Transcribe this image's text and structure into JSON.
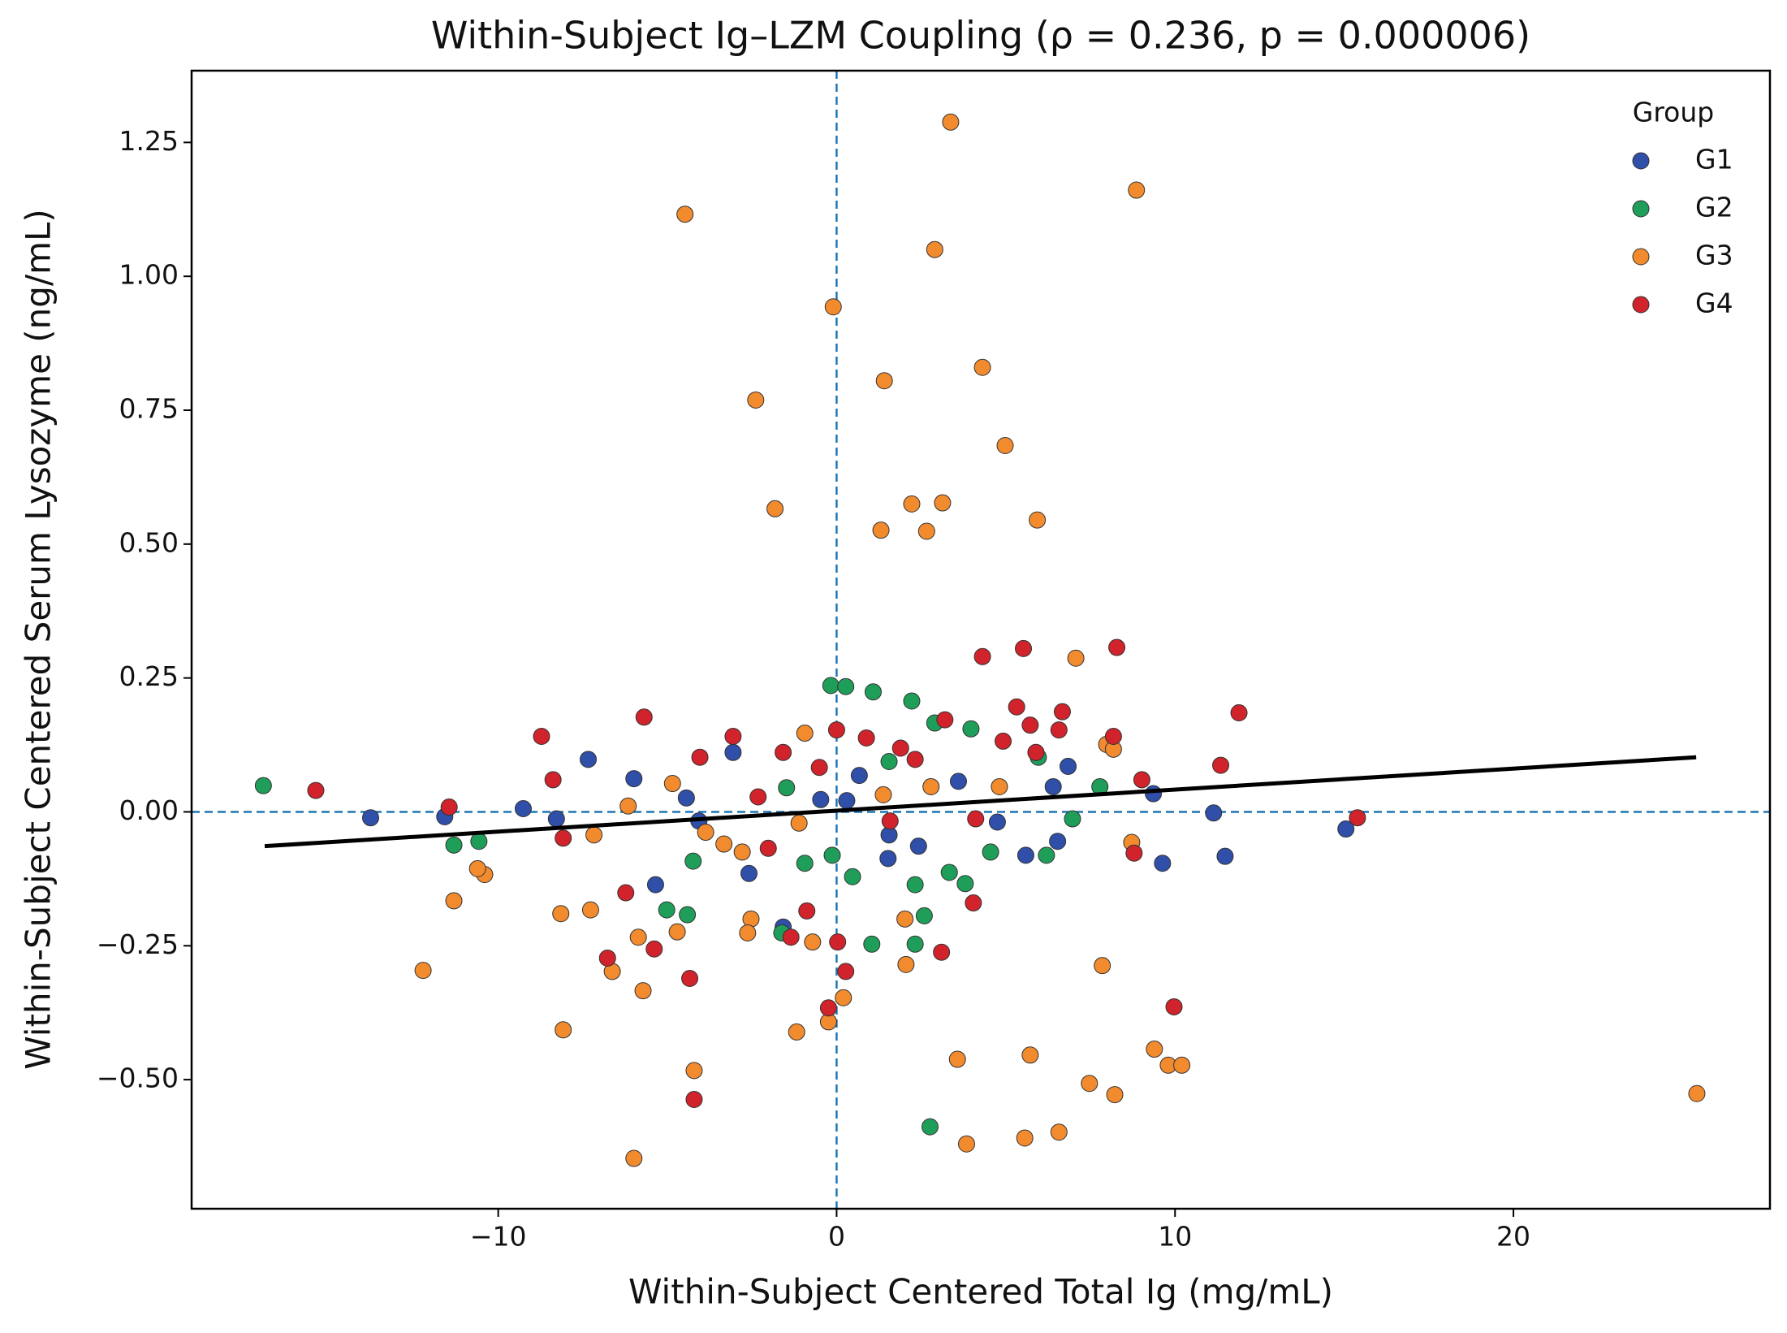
{
  "chart_data": {
    "type": "scatter",
    "title": "Within-Subject Ig–LZM Coupling (ρ = 0.236, p = 0.000006)",
    "x_label": "Within-Subject Centered Total Ig (mg/mL)",
    "y_label": "Within-Subject Centered Serum Lysozyme (ng/mL)",
    "xlim": [
      -19.06,
      27.58
    ],
    "ylim": [
      -0.741,
      1.384
    ],
    "xticks": [
      {
        "value": -10,
        "label": "−10"
      },
      0,
      10,
      20
    ],
    "yticks": [
      {
        "value": -0.5,
        "label": "−0.50"
      },
      {
        "value": -0.25,
        "label": "−0.25"
      },
      {
        "value": 0,
        "label": "0.00"
      },
      {
        "value": 0.25,
        "label": "0.25"
      },
      {
        "value": 0.5,
        "label": "0.50"
      },
      {
        "value": 0.75,
        "label": "0.75"
      },
      {
        "value": 1.0,
        "label": "1.00"
      },
      {
        "value": 1.25,
        "label": "1.25"
      }
    ],
    "grid": false,
    "legend_title": "Group",
    "legend_position": "upper right",
    "reference_lines": {
      "x": 0,
      "y": 0,
      "color": "#1f77b4"
    },
    "trend_line": {
      "x": [
        -16.9,
        25.4
      ],
      "y": [
        -0.064,
        0.102
      ],
      "color": "#000000"
    },
    "series": [
      {
        "name": "G1",
        "color": "#2f4fa8",
        "x": [
          -13.77,
          -11.58,
          -9.26,
          -8.28,
          -7.34,
          -5.99,
          -5.35,
          -4.44,
          -3.06,
          -2.59,
          -1.58,
          1.52,
          2.42,
          3.6,
          4.75,
          5.59,
          6.53,
          6.4,
          6.84,
          9.36,
          9.63,
          11.14,
          11.48,
          15.05,
          0.67,
          0.3,
          1.55,
          -0.47,
          -4.07
        ],
        "y": [
          -0.011,
          -0.009,
          0.006,
          -0.013,
          0.098,
          0.062,
          -0.136,
          0.026,
          0.111,
          -0.115,
          -0.215,
          -0.087,
          -0.064,
          0.057,
          -0.019,
          -0.081,
          -0.055,
          0.047,
          0.085,
          0.034,
          -0.096,
          -0.002,
          -0.083,
          -0.032,
          0.068,
          0.021,
          -0.043,
          0.023,
          -0.017
        ]
      },
      {
        "name": "G2",
        "color": "#1f9e5a",
        "x": [
          -16.94,
          -11.31,
          -10.57,
          -5.02,
          -4.41,
          -4.24,
          -1.62,
          -0.17,
          0.27,
          1.08,
          2.22,
          2.9,
          3.97,
          1.04,
          2.32,
          2.32,
          2.59,
          2.76,
          3.33,
          3.8,
          4.55,
          5.96,
          6.2,
          6.97,
          7.78,
          0.47,
          -0.13,
          -0.94,
          1.55,
          -1.48
        ],
        "y": [
          0.049,
          -0.062,
          -0.055,
          -0.183,
          -0.192,
          -0.092,
          -0.226,
          0.236,
          0.234,
          0.224,
          0.207,
          0.166,
          0.155,
          -0.247,
          -0.247,
          -0.136,
          -0.194,
          -0.588,
          -0.113,
          -0.134,
          -0.075,
          0.102,
          -0.081,
          -0.013,
          0.047,
          -0.121,
          -0.081,
          -0.096,
          0.094,
          0.045
        ]
      },
      {
        "name": "G3",
        "color": "#f28a2e",
        "x": [
          3.37,
          8.86,
          -4.48,
          2.9,
          -0.1,
          1.41,
          4.31,
          -2.39,
          4.98,
          -1.82,
          2.22,
          3.13,
          1.31,
          2.66,
          5.93,
          7.07,
          7.98,
          8.18,
          8.72,
          7.85,
          9.39,
          9.8,
          10.2,
          7.47,
          8.22,
          6.57,
          5.56,
          3.84,
          3.57,
          5.72,
          25.42,
          -5.99,
          -8.08,
          -4.21,
          -1.18,
          -0.24,
          0.2,
          -12.22,
          -11.31,
          -10.4,
          -10.61,
          -8.15,
          -7.27,
          -6.63,
          -5.72,
          -5.86,
          -4.71,
          -2.53,
          -2.63,
          -0.71,
          2.05,
          2.02,
          4.81,
          -0.94,
          -7.17,
          -6.16,
          -4.85,
          -3.87,
          -3.33,
          -2.79,
          -1.11,
          1.38,
          2.79
        ],
        "y": [
          1.288,
          1.161,
          1.116,
          1.05,
          0.943,
          0.805,
          0.83,
          0.769,
          0.684,
          0.566,
          0.575,
          0.577,
          0.526,
          0.524,
          0.545,
          0.287,
          0.126,
          0.117,
          -0.057,
          -0.287,
          -0.443,
          -0.473,
          -0.473,
          -0.507,
          -0.528,
          -0.598,
          -0.609,
          -0.62,
          -0.462,
          -0.454,
          -0.526,
          -0.647,
          -0.407,
          -0.483,
          -0.411,
          -0.392,
          -0.347,
          -0.296,
          -0.166,
          -0.117,
          -0.106,
          -0.19,
          -0.183,
          -0.298,
          -0.334,
          -0.234,
          -0.224,
          -0.2,
          -0.226,
          -0.243,
          -0.285,
          -0.2,
          0.047,
          0.147,
          -0.043,
          0.011,
          0.053,
          -0.038,
          -0.06,
          -0.075,
          -0.021,
          0.032,
          0.047
        ]
      },
      {
        "name": "G4",
        "color": "#d0232b",
        "x": [
          -15.39,
          -11.45,
          -8.72,
          -8.38,
          -8.08,
          -5.69,
          -4.04,
          -3.06,
          -6.77,
          -6.23,
          -5.39,
          -4.34,
          -4.21,
          -0.88,
          -1.35,
          0.03,
          0.27,
          -0.24,
          3.1,
          4.04,
          4.11,
          4.31,
          5.52,
          8.28,
          5.32,
          5.72,
          6.57,
          6.67,
          4.92,
          5.89,
          3.2,
          8.18,
          9.02,
          8.79,
          9.97,
          11.89,
          11.35,
          15.39,
          0.0,
          0.88,
          1.89,
          2.32,
          -1.58,
          -2.32,
          -2.02,
          -0.51,
          1.58
        ],
        "y": [
          0.04,
          0.009,
          0.141,
          0.06,
          -0.049,
          0.177,
          0.102,
          0.141,
          -0.273,
          -0.151,
          -0.256,
          -0.311,
          -0.537,
          -0.185,
          -0.234,
          -0.243,
          -0.298,
          -0.366,
          -0.262,
          -0.17,
          -0.013,
          0.29,
          0.305,
          0.307,
          0.196,
          0.162,
          0.153,
          0.187,
          0.132,
          0.111,
          0.172,
          0.141,
          0.06,
          -0.077,
          -0.364,
          0.185,
          0.087,
          -0.011,
          0.153,
          0.138,
          0.119,
          0.098,
          0.111,
          0.028,
          -0.068,
          0.083,
          -0.017
        ]
      }
    ]
  }
}
